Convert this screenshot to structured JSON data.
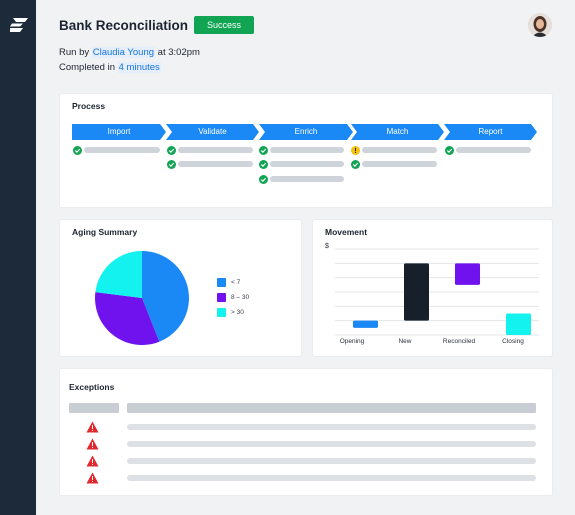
{
  "header": {
    "title": "Bank Reconciliation",
    "status": "Success",
    "run_by_prefix": "Run by ",
    "run_by_user": "Claudia Young",
    "run_by_suffix": " at 3:02pm",
    "completed_prefix": "Completed in ",
    "completed_duration": "4 minutes"
  },
  "colors": {
    "sidebar": "#1d2a3a",
    "accent_blue": "#1a88f5",
    "success_green": "#10a453",
    "warning_yellow": "#f4c20d",
    "error_red": "#e0282e",
    "purple": "#6f12ee",
    "cyan": "#13f2ee",
    "dark": "#17202a"
  },
  "process": {
    "title": "Process",
    "stages": [
      {
        "label": "Import",
        "steps": [
          "success"
        ]
      },
      {
        "label": "Validate",
        "steps": [
          "success",
          "success"
        ]
      },
      {
        "label": "Enrich",
        "steps": [
          "success",
          "success",
          "success"
        ]
      },
      {
        "label": "Match",
        "steps": [
          "warning",
          "success"
        ]
      },
      {
        "label": "Report",
        "steps": [
          "success"
        ]
      }
    ]
  },
  "aging": {
    "title": "Aging Summary",
    "legend": [
      {
        "label": "< 7",
        "color": "#1a88f5"
      },
      {
        "label": "8 – 30",
        "color": "#6f12ee"
      },
      {
        "label": "> 30",
        "color": "#13f2ee"
      }
    ]
  },
  "movement": {
    "title": "Movement",
    "y_unit": "$",
    "categories": [
      "Opening",
      "New",
      "Reconciled",
      "Closing"
    ]
  },
  "chart_data": [
    {
      "type": "pie",
      "title": "Aging Summary",
      "labels": [
        "< 7",
        "8 – 30",
        "> 30"
      ],
      "values": [
        44,
        33,
        23
      ],
      "colors": [
        "#1a88f5",
        "#6f12ee",
        "#13f2ee"
      ],
      "legend": "right"
    },
    {
      "type": "bar",
      "subtype": "waterfall",
      "title": "Movement",
      "ylabel": "$",
      "categories": [
        "Opening",
        "New",
        "Reconciled",
        "Closing"
      ],
      "low": [
        10,
        20,
        70,
        0
      ],
      "high": [
        20,
        100,
        100,
        30
      ],
      "colors": [
        "#1a88f5",
        "#17202a",
        "#6f12ee",
        "#13f2ee"
      ],
      "ylim": [
        0,
        120
      ],
      "grid": true
    }
  ],
  "exceptions": {
    "title": "Exceptions",
    "rows": 4
  }
}
